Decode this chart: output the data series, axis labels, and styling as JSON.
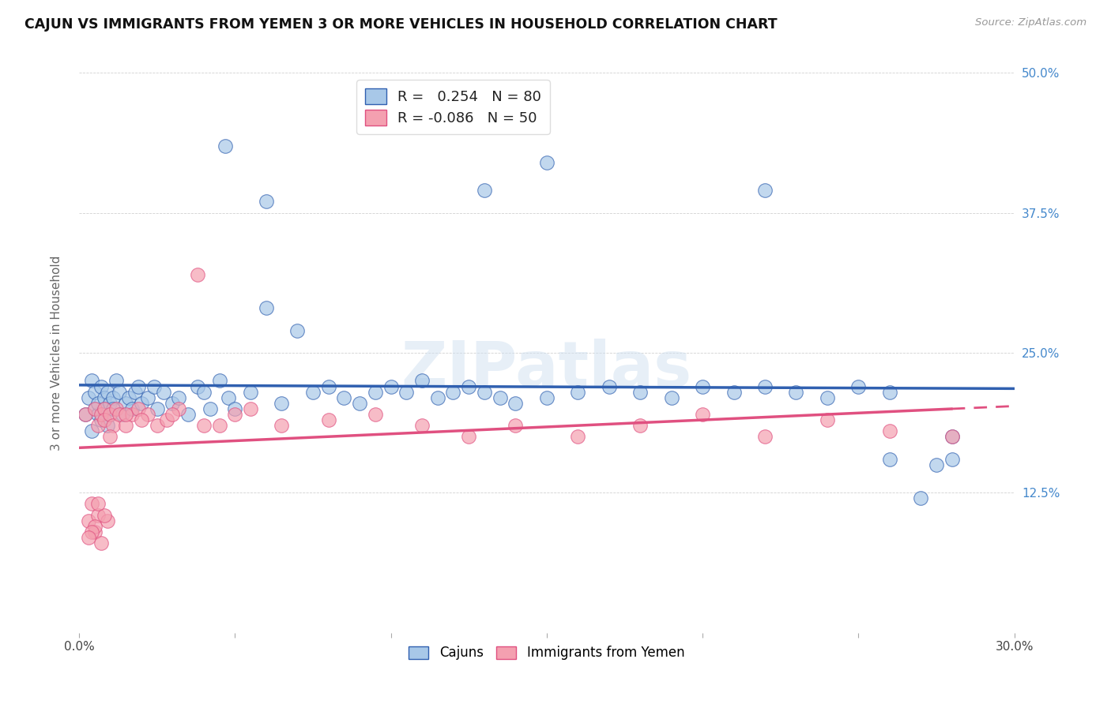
{
  "title": "CAJUN VS IMMIGRANTS FROM YEMEN 3 OR MORE VEHICLES IN HOUSEHOLD CORRELATION CHART",
  "source": "Source: ZipAtlas.com",
  "ylabel": "3 or more Vehicles in Household",
  "xmin": 0.0,
  "xmax": 0.3,
  "ymin": 0.0,
  "ymax": 0.5,
  "xticks": [
    0.0,
    0.05,
    0.1,
    0.15,
    0.2,
    0.25,
    0.3
  ],
  "xtick_labels": [
    "0.0%",
    "",
    "",
    "",
    "",
    "",
    "30.0%"
  ],
  "yticks_right": [
    0.0,
    0.125,
    0.25,
    0.375,
    0.5
  ],
  "ytick_labels_right": [
    "",
    "12.5%",
    "25.0%",
    "37.5%",
    "50.0%"
  ],
  "legend_labels": [
    "Cajuns",
    "Immigrants from Yemen"
  ],
  "r_cajun": 0.254,
  "n_cajun": 80,
  "r_yemen": -0.086,
  "n_yemen": 50,
  "blue_color": "#a8c8e8",
  "pink_color": "#f4a0b0",
  "blue_line_color": "#3060b0",
  "pink_line_color": "#e05080",
  "watermark": "ZIPatlas",
  "cajun_x": [
    0.002,
    0.003,
    0.004,
    0.004,
    0.005,
    0.005,
    0.006,
    0.006,
    0.007,
    0.007,
    0.008,
    0.008,
    0.009,
    0.009,
    0.01,
    0.01,
    0.011,
    0.011,
    0.012,
    0.013,
    0.014,
    0.015,
    0.016,
    0.017,
    0.018,
    0.019,
    0.02,
    0.022,
    0.024,
    0.025,
    0.027,
    0.03,
    0.032,
    0.035,
    0.038,
    0.04,
    0.042,
    0.045,
    0.048,
    0.05,
    0.055,
    0.06,
    0.065,
    0.07,
    0.075,
    0.08,
    0.085,
    0.09,
    0.095,
    0.1,
    0.105,
    0.11,
    0.115,
    0.12,
    0.125,
    0.13,
    0.135,
    0.14,
    0.15,
    0.16,
    0.17,
    0.18,
    0.19,
    0.2,
    0.21,
    0.22,
    0.23,
    0.24,
    0.25,
    0.26,
    0.27,
    0.275,
    0.28,
    0.047,
    0.15,
    0.13,
    0.06,
    0.22,
    0.26,
    0.28
  ],
  "cajun_y": [
    0.195,
    0.21,
    0.18,
    0.225,
    0.2,
    0.215,
    0.195,
    0.205,
    0.22,
    0.19,
    0.21,
    0.2,
    0.215,
    0.185,
    0.205,
    0.195,
    0.21,
    0.2,
    0.225,
    0.215,
    0.195,
    0.205,
    0.21,
    0.2,
    0.215,
    0.22,
    0.205,
    0.21,
    0.22,
    0.2,
    0.215,
    0.205,
    0.21,
    0.195,
    0.22,
    0.215,
    0.2,
    0.225,
    0.21,
    0.2,
    0.215,
    0.29,
    0.205,
    0.27,
    0.215,
    0.22,
    0.21,
    0.205,
    0.215,
    0.22,
    0.215,
    0.225,
    0.21,
    0.215,
    0.22,
    0.215,
    0.21,
    0.205,
    0.21,
    0.215,
    0.22,
    0.215,
    0.21,
    0.22,
    0.215,
    0.22,
    0.215,
    0.21,
    0.22,
    0.215,
    0.12,
    0.15,
    0.155,
    0.435,
    0.42,
    0.395,
    0.385,
    0.395,
    0.155,
    0.175
  ],
  "yemen_x": [
    0.002,
    0.003,
    0.004,
    0.005,
    0.005,
    0.006,
    0.006,
    0.007,
    0.007,
    0.008,
    0.008,
    0.009,
    0.01,
    0.011,
    0.012,
    0.013,
    0.015,
    0.017,
    0.019,
    0.022,
    0.025,
    0.028,
    0.032,
    0.038,
    0.045,
    0.055,
    0.065,
    0.08,
    0.095,
    0.11,
    0.125,
    0.14,
    0.16,
    0.18,
    0.2,
    0.22,
    0.24,
    0.26,
    0.28,
    0.05,
    0.04,
    0.03,
    0.02,
    0.015,
    0.01,
    0.008,
    0.006,
    0.005,
    0.004,
    0.003
  ],
  "yemen_y": [
    0.195,
    0.1,
    0.115,
    0.2,
    0.09,
    0.185,
    0.105,
    0.195,
    0.08,
    0.2,
    0.19,
    0.1,
    0.195,
    0.185,
    0.2,
    0.195,
    0.185,
    0.195,
    0.2,
    0.195,
    0.185,
    0.19,
    0.2,
    0.32,
    0.185,
    0.2,
    0.185,
    0.19,
    0.195,
    0.185,
    0.175,
    0.185,
    0.175,
    0.185,
    0.195,
    0.175,
    0.19,
    0.18,
    0.175,
    0.195,
    0.185,
    0.195,
    0.19,
    0.195,
    0.175,
    0.105,
    0.115,
    0.095,
    0.09,
    0.085
  ]
}
